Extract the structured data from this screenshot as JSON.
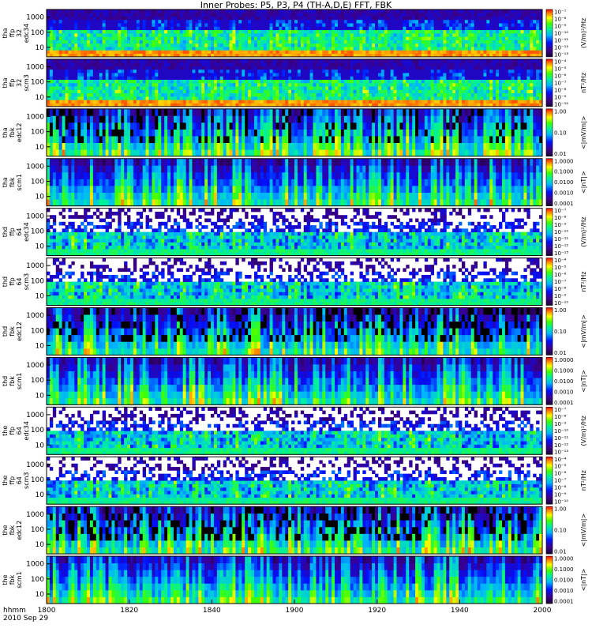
{
  "chart_data": {
    "type": "heatmap",
    "title": "Inner Probes: P5, P3, P4 (TH-A,D,E) FFT, FBK",
    "time_axis": {
      "label_line1": "hhmm",
      "label_line2": "2010 Sep 29",
      "ticks": [
        "1800",
        "1820",
        "1840",
        "1900",
        "1920",
        "1940",
        "2000"
      ],
      "range_minutes": [
        0,
        120
      ]
    },
    "y_ticks": [
      "10",
      "100",
      "1000"
    ],
    "panels": [
      {
        "id": "tha-ffp32-edc34",
        "ylabel": [
          "tha",
          "ffp",
          "32",
          "edc34"
        ],
        "cbar_label": "(V/m)²/Hz",
        "cbar_ticks": [
          "10⁻¹³",
          "10⁻¹²",
          "10⁻¹¹",
          "10⁻¹⁰",
          "10⁻⁹",
          "10⁻⁸",
          "10⁻⁷"
        ],
        "kind": "efft",
        "seed": 11,
        "activity": 0.55
      },
      {
        "id": "tha-ffp32-scm3",
        "ylabel": [
          "tha",
          "ffp",
          "32",
          "scm3"
        ],
        "cbar_label": "nT²/Hz",
        "cbar_ticks": [
          "10⁻¹⁰",
          "10⁻⁹",
          "10⁻⁸",
          "10⁻⁷",
          "10⁻⁶",
          "10⁻⁵",
          "10⁻⁴"
        ],
        "kind": "bfft",
        "seed": 23,
        "activity": 0.5
      },
      {
        "id": "tha-fbk-edc12",
        "ylabel": [
          "tha",
          "fbk",
          "edc12"
        ],
        "cbar_label": "<|mV/m|>",
        "cbar_ticks": [
          "0.01",
          "0.10",
          "1.00"
        ],
        "kind": "efbk",
        "seed": 37,
        "activity": 0.6
      },
      {
        "id": "tha-fbk-scm1",
        "ylabel": [
          "tha",
          "fbk",
          "scm1"
        ],
        "cbar_label": "<|nT|>",
        "cbar_ticks": [
          "0.0001",
          "0.0010",
          "0.0100",
          "0.1000",
          "1.0000"
        ],
        "kind": "bfbk",
        "seed": 41,
        "activity": 0.5
      },
      {
        "id": "thd-ffp64-edc34",
        "ylabel": [
          "thd",
          "ffp",
          "64",
          "edc34"
        ],
        "cbar_label": "(V/m)²/Hz",
        "cbar_ticks": [
          "10⁻¹³",
          "10⁻¹²",
          "10⁻¹¹",
          "10⁻¹⁰",
          "10⁻⁹",
          "10⁻⁸",
          "10⁻⁷"
        ],
        "kind": "efft2",
        "seed": 53,
        "activity": 0.4
      },
      {
        "id": "thd-ffp64-scm3",
        "ylabel": [
          "thd",
          "ffp",
          "64",
          "scm3"
        ],
        "cbar_label": "nT²/Hz",
        "cbar_ticks": [
          "10⁻¹⁰",
          "10⁻⁹",
          "10⁻⁸",
          "10⁻⁷",
          "10⁻⁶",
          "10⁻⁵",
          "10⁻⁴"
        ],
        "kind": "bfft2",
        "seed": 67,
        "activity": 0.5
      },
      {
        "id": "thd-fbk-edc12",
        "ylabel": [
          "thd",
          "fbk",
          "edc12"
        ],
        "cbar_label": "<|mV/m|>",
        "cbar_ticks": [
          "0.01",
          "0.10",
          "1.00"
        ],
        "kind": "efbk",
        "seed": 71,
        "activity": 0.45
      },
      {
        "id": "thd-fbk-scm1",
        "ylabel": [
          "thd",
          "fbk",
          "scm1"
        ],
        "cbar_label": "<|nT|>",
        "cbar_ticks": [
          "0.0001",
          "0.0010",
          "0.0100",
          "0.1000",
          "1.0000"
        ],
        "kind": "bfbk",
        "seed": 83,
        "activity": 0.45
      },
      {
        "id": "the-ffp64-edc34",
        "ylabel": [
          "the",
          "ffp",
          "64",
          "edc34"
        ],
        "cbar_label": "(V/m)²/Hz",
        "cbar_ticks": [
          "10⁻¹³",
          "10⁻¹²",
          "10⁻¹¹",
          "10⁻¹⁰",
          "10⁻⁹",
          "10⁻⁸",
          "10⁻⁷"
        ],
        "kind": "efft2",
        "seed": 97,
        "activity": 0.45
      },
      {
        "id": "the-ffp64-scm3",
        "ylabel": [
          "the",
          "ffp",
          "64",
          "scm3"
        ],
        "cbar_label": "nT²/Hz",
        "cbar_ticks": [
          "10⁻¹⁰",
          "10⁻⁹",
          "10⁻⁸",
          "10⁻⁷",
          "10⁻⁶",
          "10⁻⁵",
          "10⁻⁴"
        ],
        "kind": "bfft2",
        "seed": 101,
        "activity": 0.5
      },
      {
        "id": "the-fbk-edc12",
        "ylabel": [
          "the",
          "fbk",
          "edc12"
        ],
        "cbar_label": "<|mV/m|>",
        "cbar_ticks": [
          "0.01",
          "0.10",
          "1.00"
        ],
        "kind": "efbk",
        "seed": 113,
        "activity": 0.5
      },
      {
        "id": "the-fbk-scm1",
        "ylabel": [
          "the",
          "fbk",
          "scm1"
        ],
        "cbar_label": "<|nT|>",
        "cbar_ticks": [
          "0.0001",
          "0.0010",
          "0.0100",
          "0.1000",
          "1.0000"
        ],
        "kind": "bfbk",
        "seed": 127,
        "activity": 0.5
      }
    ]
  }
}
